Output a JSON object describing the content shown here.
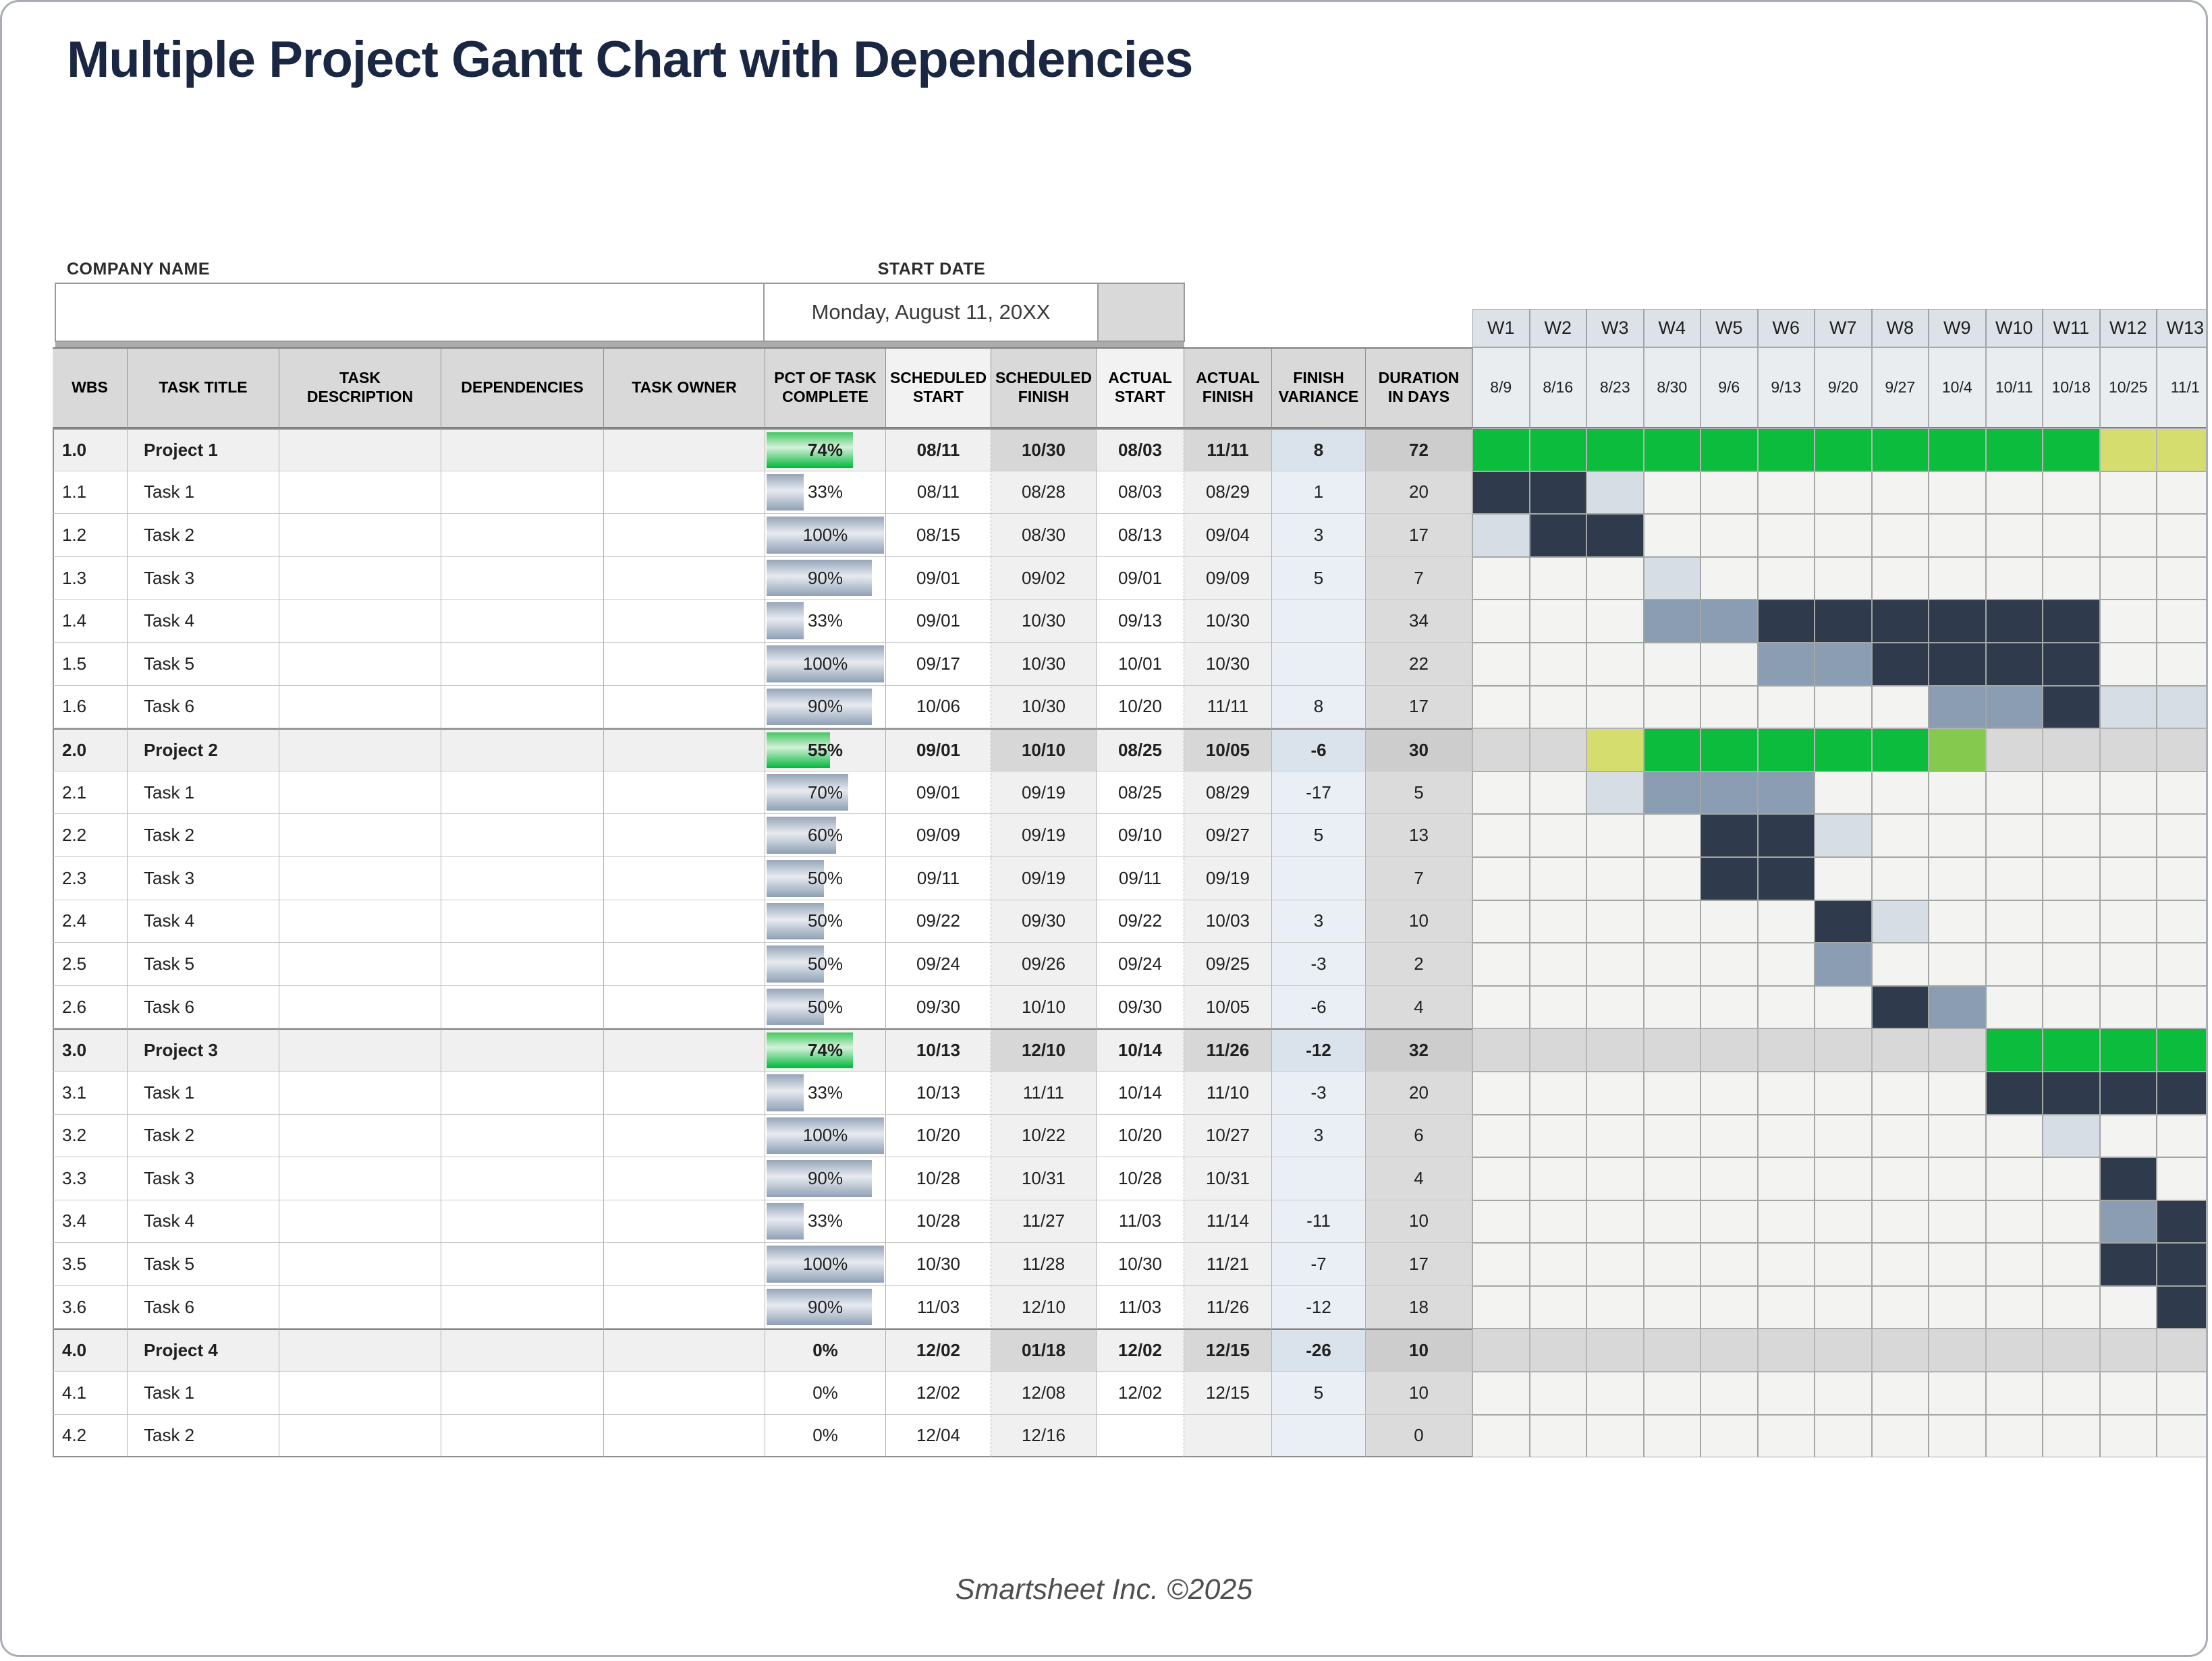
{
  "title": "Multiple Project Gantt Chart with Dependencies",
  "company": {
    "label": "COMPANY NAME",
    "value": ""
  },
  "start_date": {
    "label": "START DATE",
    "value": "Monday, August 11, 20XX"
  },
  "footer": "Smartsheet Inc. ©2025",
  "colors": {
    "title_navy": "#1a2742",
    "header_gray": "#d9d9d9",
    "header_light": "#f2f2f2",
    "week_header": "#dce2e8",
    "week_date": "#e9edf0",
    "green": "#0cbc3c",
    "yellow_green": "#d5dd6e",
    "light_green": "#85c94f",
    "navy": "#2f3b4c",
    "med_blue": "#8a9db3",
    "light_blue": "#d7dde5",
    "project_gray": "#d8d8d8",
    "empty_cell": "#f3f4f2",
    "project_row": "#f0f0f0",
    "finish_task": "#f0f0f0",
    "finish_project": "#d7d7d7",
    "variance_task": "#e9eff5",
    "variance_project": "#dae2eb",
    "duration_task": "#dbdbdb",
    "duration_project": "#cdcdcd"
  },
  "chart_data": {
    "type": "table",
    "subtype": "gantt",
    "title": "Multiple Project Gantt Chart with Dependencies",
    "columns": [
      "WBS",
      "TASK TITLE",
      "TASK DESCRIPTION",
      "DEPENDENCIES",
      "TASK OWNER",
      "PCT OF TASK COMPLETE",
      "SCHEDULED START",
      "SCHEDULED FINISH",
      "ACTUAL START",
      "ACTUAL FINISH",
      "FINISH VARIANCE",
      "DURATION IN DAYS"
    ],
    "weeks": [
      {
        "label": "W1",
        "date": "8/9"
      },
      {
        "label": "W2",
        "date": "8/16"
      },
      {
        "label": "W3",
        "date": "8/23"
      },
      {
        "label": "W4",
        "date": "8/30"
      },
      {
        "label": "W5",
        "date": "9/6"
      },
      {
        "label": "W6",
        "date": "9/13"
      },
      {
        "label": "W7",
        "date": "9/20"
      },
      {
        "label": "W8",
        "date": "9/27"
      },
      {
        "label": "W9",
        "date": "10/4"
      },
      {
        "label": "W10",
        "date": "10/11"
      },
      {
        "label": "W11",
        "date": "10/18"
      },
      {
        "label": "W12",
        "date": "10/25"
      },
      {
        "label": "W13",
        "date": "11/1"
      }
    ],
    "gantt_legend": {
      "G": "project-on-track-green",
      "Y": "project-buffer-yellow-green",
      "LG": "project-partial-light-green",
      "N": "task-actual-dark-navy",
      "M": "task-scheduled-medium-blue",
      "L": "task-light-blue",
      "P": "project-row-gray",
      "E": "empty"
    },
    "rows": [
      {
        "wbs": "1.0",
        "title": "Project 1",
        "project": true,
        "pct": "74%",
        "pv": 74,
        "ss": "08/11",
        "sf": "10/30",
        "as": "08/03",
        "af": "11/11",
        "fv": "8",
        "dur": "72",
        "g": [
          "G",
          "G",
          "G",
          "G",
          "G",
          "G",
          "G",
          "G",
          "G",
          "G",
          "G",
          "Y",
          "Y"
        ]
      },
      {
        "wbs": "1.1",
        "title": "Task 1",
        "project": false,
        "pct": "33%",
        "pv": 33,
        "ss": "08/11",
        "sf": "08/28",
        "as": "08/03",
        "af": "08/29",
        "fv": "1",
        "dur": "20",
        "g": [
          "N",
          "N",
          "L",
          "E",
          "E",
          "E",
          "E",
          "E",
          "E",
          "E",
          "E",
          "E",
          "E"
        ]
      },
      {
        "wbs": "1.2",
        "title": "Task 2",
        "project": false,
        "pct": "100%",
        "pv": 100,
        "ss": "08/15",
        "sf": "08/30",
        "as": "08/13",
        "af": "09/04",
        "fv": "3",
        "dur": "17",
        "g": [
          "L",
          "N",
          "N",
          "E",
          "E",
          "E",
          "E",
          "E",
          "E",
          "E",
          "E",
          "E",
          "E"
        ]
      },
      {
        "wbs": "1.3",
        "title": "Task 3",
        "project": false,
        "pct": "90%",
        "pv": 90,
        "ss": "09/01",
        "sf": "09/02",
        "as": "09/01",
        "af": "09/09",
        "fv": "5",
        "dur": "7",
        "g": [
          "E",
          "E",
          "E",
          "L",
          "E",
          "E",
          "E",
          "E",
          "E",
          "E",
          "E",
          "E",
          "E"
        ]
      },
      {
        "wbs": "1.4",
        "title": "Task 4",
        "project": false,
        "pct": "33%",
        "pv": 33,
        "ss": "09/01",
        "sf": "10/30",
        "as": "09/13",
        "af": "10/30",
        "fv": "",
        "dur": "34",
        "g": [
          "E",
          "E",
          "E",
          "M",
          "M",
          "N",
          "N",
          "N",
          "N",
          "N",
          "N",
          "E",
          "E"
        ]
      },
      {
        "wbs": "1.5",
        "title": "Task 5",
        "project": false,
        "pct": "100%",
        "pv": 100,
        "ss": "09/17",
        "sf": "10/30",
        "as": "10/01",
        "af": "10/30",
        "fv": "",
        "dur": "22",
        "g": [
          "E",
          "E",
          "E",
          "E",
          "E",
          "M",
          "M",
          "N",
          "N",
          "N",
          "N",
          "E",
          "E"
        ]
      },
      {
        "wbs": "1.6",
        "title": "Task 6",
        "project": false,
        "pct": "90%",
        "pv": 90,
        "ss": "10/06",
        "sf": "10/30",
        "as": "10/20",
        "af": "11/11",
        "fv": "8",
        "dur": "17",
        "g": [
          "E",
          "E",
          "E",
          "E",
          "E",
          "E",
          "E",
          "E",
          "M",
          "M",
          "N",
          "L",
          "L"
        ]
      },
      {
        "wbs": "2.0",
        "title": "Project 2",
        "project": true,
        "pct": "55%",
        "pv": 55,
        "ss": "09/01",
        "sf": "10/10",
        "as": "08/25",
        "af": "10/05",
        "fv": "-6",
        "dur": "30",
        "g": [
          "P",
          "P",
          "Y",
          "G",
          "G",
          "G",
          "G",
          "G",
          "LG",
          "P",
          "P",
          "P",
          "P"
        ]
      },
      {
        "wbs": "2.1",
        "title": "Task 1",
        "project": false,
        "pct": "70%",
        "pv": 70,
        "ss": "09/01",
        "sf": "09/19",
        "as": "08/25",
        "af": "08/29",
        "fv": "-17",
        "dur": "5",
        "g": [
          "E",
          "E",
          "L",
          "M",
          "M",
          "M",
          "E",
          "E",
          "E",
          "E",
          "E",
          "E",
          "E"
        ]
      },
      {
        "wbs": "2.2",
        "title": "Task 2",
        "project": false,
        "pct": "60%",
        "pv": 60,
        "ss": "09/09",
        "sf": "09/19",
        "as": "09/10",
        "af": "09/27",
        "fv": "5",
        "dur": "13",
        "g": [
          "E",
          "E",
          "E",
          "E",
          "N",
          "N",
          "L",
          "E",
          "E",
          "E",
          "E",
          "E",
          "E"
        ]
      },
      {
        "wbs": "2.3",
        "title": "Task 3",
        "project": false,
        "pct": "50%",
        "pv": 50,
        "ss": "09/11",
        "sf": "09/19",
        "as": "09/11",
        "af": "09/19",
        "fv": "",
        "dur": "7",
        "g": [
          "E",
          "E",
          "E",
          "E",
          "N",
          "N",
          "E",
          "E",
          "E",
          "E",
          "E",
          "E",
          "E"
        ]
      },
      {
        "wbs": "2.4",
        "title": "Task 4",
        "project": false,
        "pct": "50%",
        "pv": 50,
        "ss": "09/22",
        "sf": "09/30",
        "as": "09/22",
        "af": "10/03",
        "fv": "3",
        "dur": "10",
        "g": [
          "E",
          "E",
          "E",
          "E",
          "E",
          "E",
          "N",
          "L",
          "E",
          "E",
          "E",
          "E",
          "E"
        ]
      },
      {
        "wbs": "2.5",
        "title": "Task 5",
        "project": false,
        "pct": "50%",
        "pv": 50,
        "ss": "09/24",
        "sf": "09/26",
        "as": "09/24",
        "af": "09/25",
        "fv": "-3",
        "dur": "2",
        "g": [
          "E",
          "E",
          "E",
          "E",
          "E",
          "E",
          "M",
          "E",
          "E",
          "E",
          "E",
          "E",
          "E"
        ]
      },
      {
        "wbs": "2.6",
        "title": "Task 6",
        "project": false,
        "pct": "50%",
        "pv": 50,
        "ss": "09/30",
        "sf": "10/10",
        "as": "09/30",
        "af": "10/05",
        "fv": "-6",
        "dur": "4",
        "g": [
          "E",
          "E",
          "E",
          "E",
          "E",
          "E",
          "E",
          "N",
          "M",
          "E",
          "E",
          "E",
          "E"
        ]
      },
      {
        "wbs": "3.0",
        "title": "Project 3",
        "project": true,
        "pct": "74%",
        "pv": 74,
        "ss": "10/13",
        "sf": "12/10",
        "as": "10/14",
        "af": "11/26",
        "fv": "-12",
        "dur": "32",
        "g": [
          "P",
          "P",
          "P",
          "P",
          "P",
          "P",
          "P",
          "P",
          "P",
          "G",
          "G",
          "G",
          "G"
        ]
      },
      {
        "wbs": "3.1",
        "title": "Task 1",
        "project": false,
        "pct": "33%",
        "pv": 33,
        "ss": "10/13",
        "sf": "11/11",
        "as": "10/14",
        "af": "11/10",
        "fv": "-3",
        "dur": "20",
        "g": [
          "E",
          "E",
          "E",
          "E",
          "E",
          "E",
          "E",
          "E",
          "E",
          "N",
          "N",
          "N",
          "N"
        ]
      },
      {
        "wbs": "3.2",
        "title": "Task 2",
        "project": false,
        "pct": "100%",
        "pv": 100,
        "ss": "10/20",
        "sf": "10/22",
        "as": "10/20",
        "af": "10/27",
        "fv": "3",
        "dur": "6",
        "g": [
          "E",
          "E",
          "E",
          "E",
          "E",
          "E",
          "E",
          "E",
          "E",
          "E",
          "L",
          "E",
          "E"
        ]
      },
      {
        "wbs": "3.3",
        "title": "Task 3",
        "project": false,
        "pct": "90%",
        "pv": 90,
        "ss": "10/28",
        "sf": "10/31",
        "as": "10/28",
        "af": "10/31",
        "fv": "",
        "dur": "4",
        "g": [
          "E",
          "E",
          "E",
          "E",
          "E",
          "E",
          "E",
          "E",
          "E",
          "E",
          "E",
          "N",
          "E"
        ]
      },
      {
        "wbs": "3.4",
        "title": "Task 4",
        "project": false,
        "pct": "33%",
        "pv": 33,
        "ss": "10/28",
        "sf": "11/27",
        "as": "11/03",
        "af": "11/14",
        "fv": "-11",
        "dur": "10",
        "g": [
          "E",
          "E",
          "E",
          "E",
          "E",
          "E",
          "E",
          "E",
          "E",
          "E",
          "E",
          "M",
          "N"
        ]
      },
      {
        "wbs": "3.5",
        "title": "Task 5",
        "project": false,
        "pct": "100%",
        "pv": 100,
        "ss": "10/30",
        "sf": "11/28",
        "as": "10/30",
        "af": "11/21",
        "fv": "-7",
        "dur": "17",
        "g": [
          "E",
          "E",
          "E",
          "E",
          "E",
          "E",
          "E",
          "E",
          "E",
          "E",
          "E",
          "N",
          "N"
        ]
      },
      {
        "wbs": "3.6",
        "title": "Task 6",
        "project": false,
        "pct": "90%",
        "pv": 90,
        "ss": "11/03",
        "sf": "12/10",
        "as": "11/03",
        "af": "11/26",
        "fv": "-12",
        "dur": "18",
        "g": [
          "E",
          "E",
          "E",
          "E",
          "E",
          "E",
          "E",
          "E",
          "E",
          "E",
          "E",
          "E",
          "N"
        ]
      },
      {
        "wbs": "4.0",
        "title": "Project 4",
        "project": true,
        "pct": "0%",
        "pv": 0,
        "ss": "12/02",
        "sf": "01/18",
        "as": "12/02",
        "af": "12/15",
        "fv": "-26",
        "dur": "10",
        "g": [
          "P",
          "P",
          "P",
          "P",
          "P",
          "P",
          "P",
          "P",
          "P",
          "P",
          "P",
          "P",
          "P"
        ]
      },
      {
        "wbs": "4.1",
        "title": "Task 1",
        "project": false,
        "pct": "0%",
        "pv": 0,
        "ss": "12/02",
        "sf": "12/08",
        "as": "12/02",
        "af": "12/15",
        "fv": "5",
        "dur": "10",
        "g": [
          "E",
          "E",
          "E",
          "E",
          "E",
          "E",
          "E",
          "E",
          "E",
          "E",
          "E",
          "E",
          "E"
        ]
      },
      {
        "wbs": "4.2",
        "title": "Task 2",
        "project": false,
        "pct": "0%",
        "pv": 0,
        "ss": "12/04",
        "sf": "12/16",
        "as": "",
        "af": "",
        "fv": "",
        "dur": "0",
        "g": [
          "E",
          "E",
          "E",
          "E",
          "E",
          "E",
          "E",
          "E",
          "E",
          "E",
          "E",
          "E",
          "E"
        ]
      }
    ]
  }
}
